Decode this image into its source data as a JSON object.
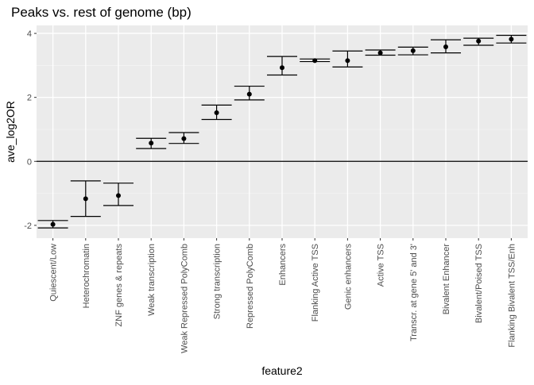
{
  "chart_data": {
    "type": "scatter",
    "title": "Peaks vs. rest of genome (bp)",
    "xlabel": "feature2",
    "ylabel": "ave_log2OR",
    "ylim": [
      -2.4,
      4.25
    ],
    "y_ticks": [
      -2,
      0,
      2,
      4
    ],
    "grid": true,
    "reference_line_y": 0,
    "categories": [
      "Quiescent/Low",
      "Heterochromatin",
      "ZNF genes & repeats",
      "Weak transcription",
      "Weak Repressed PolyComb",
      "Strong transcription",
      "Repressed PolyComb",
      "Enhancers",
      "Flanking Active TSS",
      "Genic enhancers",
      "Active TSS",
      "Transcr. at gene 5' and 3'",
      "Bivalent Enhancer",
      "Bivalent/Poised TSS",
      "Flanking Bivalent TSS/Enh"
    ],
    "values": [
      -1.97,
      -1.17,
      -1.07,
      0.57,
      0.71,
      1.52,
      2.1,
      2.93,
      3.15,
      3.15,
      3.39,
      3.46,
      3.58,
      3.76,
      3.82
    ],
    "lower": [
      -2.08,
      -1.72,
      -1.38,
      0.4,
      0.56,
      1.31,
      1.92,
      2.7,
      3.12,
      2.95,
      3.32,
      3.33,
      3.39,
      3.63,
      3.7
    ],
    "upper": [
      -1.85,
      -0.61,
      -0.68,
      0.72,
      0.9,
      1.76,
      2.35,
      3.28,
      3.2,
      3.45,
      3.48,
      3.57,
      3.8,
      3.85,
      3.94
    ],
    "colors": {
      "panel_background": "#ebebeb",
      "grid_major": "#ffffff",
      "grid_minor": "#f5f5f5",
      "point": "#000000",
      "errorbar": "#000000",
      "axis_text": "#4d4d4d",
      "title_text": "#000000"
    }
  }
}
